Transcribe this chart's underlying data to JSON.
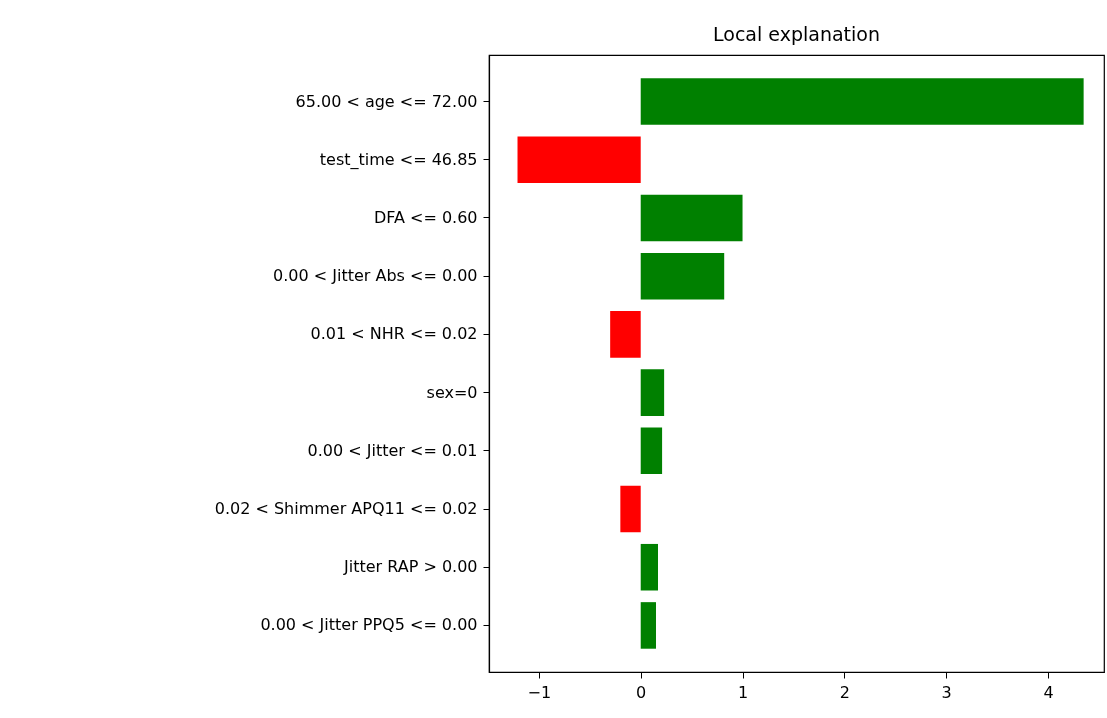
{
  "chart_data": {
    "type": "bar",
    "orientation": "horizontal",
    "title": "Local explanation",
    "categories": [
      "65.00 < age <= 72.00",
      "test_time <= 46.85",
      "DFA <= 0.60",
      "0.00 < Jitter Abs  <= 0.00",
      "0.01 < NHR <= 0.02",
      "sex=0",
      "0.00 < Jitter  <= 0.01",
      "0.02 < Shimmer APQ11 <= 0.02",
      "Jitter RAP > 0.00",
      "0.00 < Jitter PPQ5 <= 0.00"
    ],
    "values": [
      4.35,
      -1.21,
      1.0,
      0.82,
      -0.3,
      0.23,
      0.21,
      -0.2,
      0.17,
      0.15
    ],
    "colors": [
      "#008000",
      "#ff0000",
      "#008000",
      "#008000",
      "#ff0000",
      "#008000",
      "#008000",
      "#ff0000",
      "#008000",
      "#008000"
    ],
    "xlim": [
      -1.49,
      4.55
    ],
    "xticks": [
      -1,
      0,
      1,
      2,
      3,
      4
    ],
    "grid": false
  }
}
